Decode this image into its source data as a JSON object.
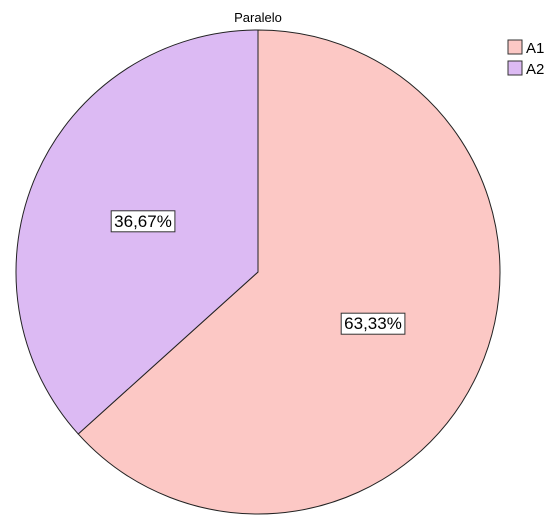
{
  "chart_data": {
    "type": "pie",
    "title": "Paralelo",
    "legend": "top-right",
    "start_angle_deg": 0,
    "direction": "clockwise",
    "slices": [
      {
        "name": "A1",
        "value": 63.33,
        "label": "63,33%",
        "color": "#fcc8c5"
      },
      {
        "name": "A2",
        "value": 36.67,
        "label": "36,67%",
        "color": "#dcbaf3"
      }
    ],
    "stroke_color": "#222222"
  }
}
